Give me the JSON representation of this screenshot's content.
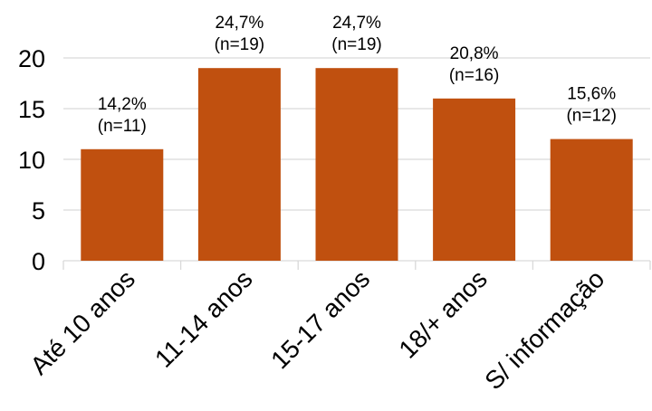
{
  "chart_data": {
    "type": "bar",
    "categories": [
      "Até 10 anos",
      "11-14 anos",
      "15-17 anos",
      "18/+ anos",
      "S/ informação"
    ],
    "values": [
      11,
      19,
      19,
      16,
      12
    ],
    "data_labels": [
      [
        "14,2%",
        "(n=11)"
      ],
      [
        "24,7%",
        "(n=19)"
      ],
      [
        "24,7%",
        "(n=19)"
      ],
      [
        "20,8%",
        "(n=16)"
      ],
      [
        "15,6%",
        "(n=12)"
      ]
    ],
    "yticks": [
      "0",
      "5",
      "10",
      "15",
      "20"
    ],
    "ylim": [
      0,
      20
    ],
    "grid": true,
    "legend": "none",
    "bar_color": "#C0500F",
    "grid_color": "#D9D9D9"
  }
}
